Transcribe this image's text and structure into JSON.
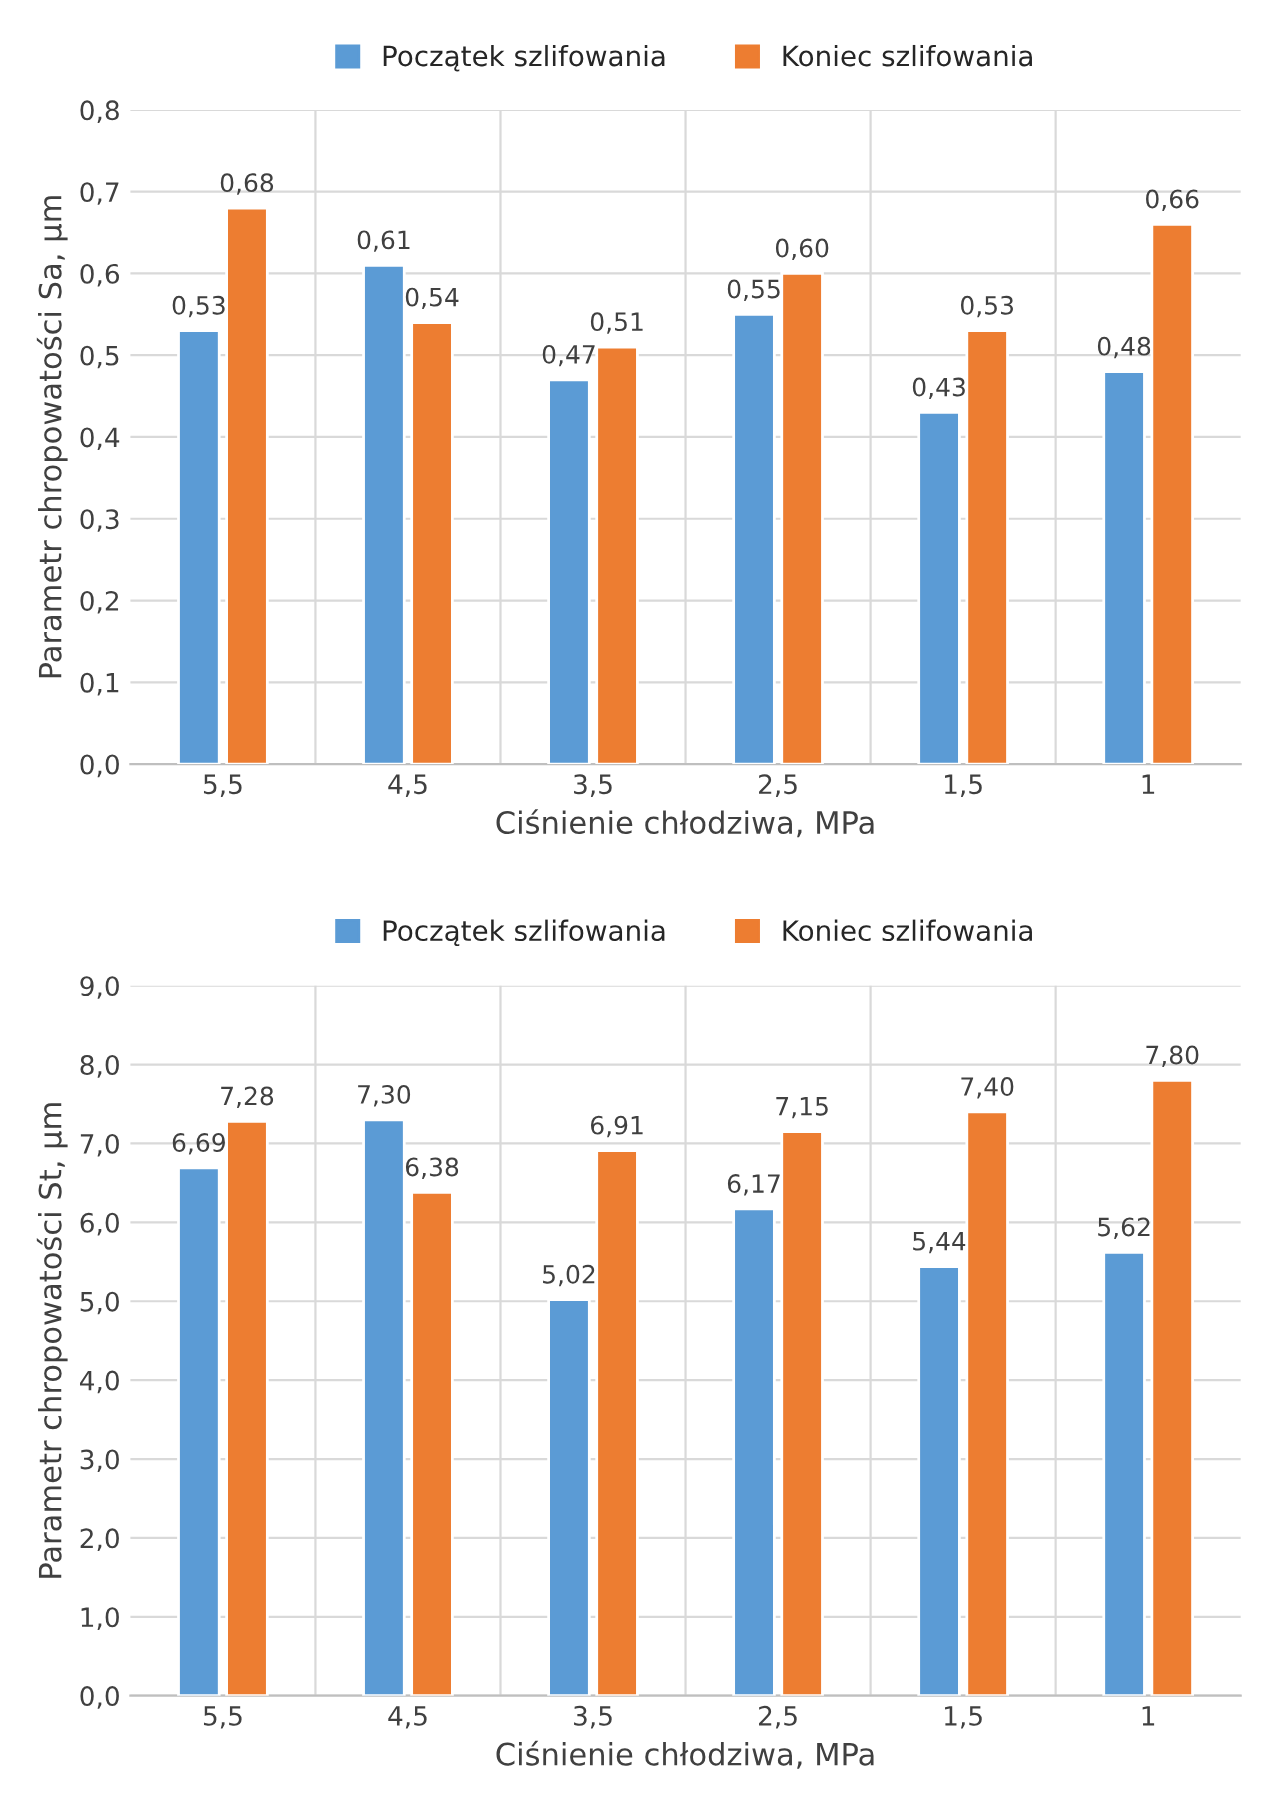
{
  "chart_data": [
    {
      "type": "bar",
      "xlabel": "Ciśnienie chłodziwa, MPa",
      "ylabel": "Parametr chropowatości Sa, µm",
      "categories": [
        "5,5",
        "4,5",
        "3,5",
        "2,5",
        "1,5",
        "1"
      ],
      "series": [
        {
          "name": "Początek szlifowania",
          "color": "#5b9bd5",
          "values": [
            0.53,
            0.61,
            0.47,
            0.55,
            0.43,
            0.48
          ],
          "value_labels": [
            "0,53",
            "0,61",
            "0,47",
            "0,55",
            "0,43",
            "0,48"
          ]
        },
        {
          "name": "Koniec szlifowania",
          "color": "#ed7d31",
          "values": [
            0.68,
            0.54,
            0.51,
            0.6,
            0.53,
            0.66
          ],
          "value_labels": [
            "0,68",
            "0,54",
            "0,51",
            "0,60",
            "0,53",
            "0,66"
          ]
        }
      ],
      "ylim": [
        0,
        0.8
      ],
      "yticks": [
        {
          "value": 0,
          "label": "0,0"
        },
        {
          "value": 0.1,
          "label": "0,1"
        },
        {
          "value": 0.2,
          "label": "0,2"
        },
        {
          "value": 0.3,
          "label": "0,3"
        },
        {
          "value": 0.4,
          "label": "0,4"
        },
        {
          "value": 0.5,
          "label": "0,5"
        },
        {
          "value": 0.6,
          "label": "0,6"
        },
        {
          "value": 0.7,
          "label": "0,7"
        },
        {
          "value": 0.8,
          "label": "0,8"
        }
      ],
      "grid": true,
      "legend": "top"
    },
    {
      "type": "bar",
      "xlabel": "Ciśnienie chłodziwa, MPa",
      "ylabel": "Parametr chropowatości St, µm",
      "categories": [
        "5,5",
        "4,5",
        "3,5",
        "2,5",
        "1,5",
        "1"
      ],
      "series": [
        {
          "name": "Początek szlifowania",
          "color": "#5b9bd5",
          "values": [
            6.69,
            7.3,
            5.02,
            6.17,
            5.44,
            5.62
          ],
          "value_labels": [
            "6,69",
            "7,30",
            "5,02",
            "6,17",
            "5,44",
            "5,62"
          ]
        },
        {
          "name": "Koniec szlifowania",
          "color": "#ed7d31",
          "values": [
            7.28,
            6.38,
            6.91,
            7.15,
            7.4,
            7.8
          ],
          "value_labels": [
            "7,28",
            "6,38",
            "6,91",
            "7,15",
            "7,40",
            "7,80"
          ]
        }
      ],
      "ylim": [
        0,
        9
      ],
      "yticks": [
        {
          "value": 0,
          "label": "0,0"
        },
        {
          "value": 1,
          "label": "1,0"
        },
        {
          "value": 2,
          "label": "2,0"
        },
        {
          "value": 3,
          "label": "3,0"
        },
        {
          "value": 4,
          "label": "4,0"
        },
        {
          "value": 5,
          "label": "5,0"
        },
        {
          "value": 6,
          "label": "6,0"
        },
        {
          "value": 7,
          "label": "7,0"
        },
        {
          "value": 8,
          "label": "8,0"
        },
        {
          "value": 9,
          "label": "9,0"
        }
      ],
      "grid": true,
      "legend": "top"
    }
  ]
}
